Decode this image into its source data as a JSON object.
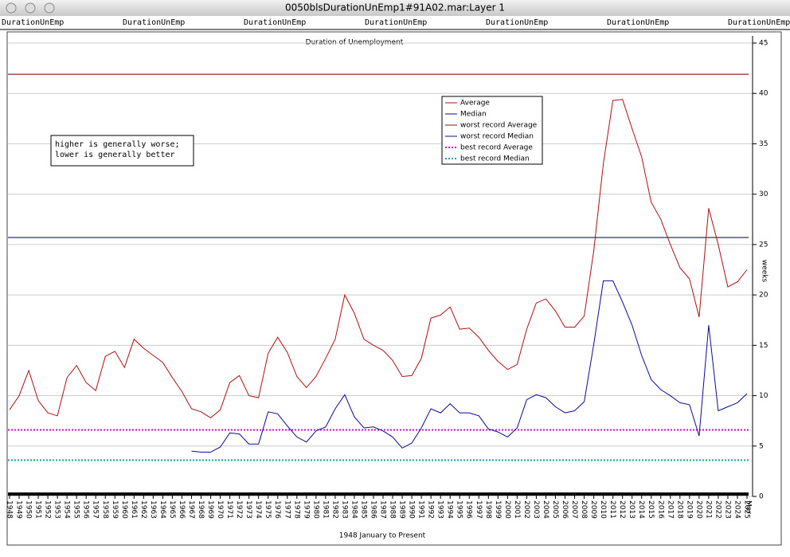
{
  "window": {
    "title": "0050blsDurationUnEmp1#91A02.mar:Layer 1",
    "header_labels": [
      "DurationUnEmp",
      "DurationUnEmp",
      "DurationUnEmp",
      "DurationUnEmp",
      "DurationUnEmp",
      "DurationUnEmp",
      "DurationUnEmp"
    ]
  },
  "chart_data": {
    "type": "line",
    "title": "Duration of Unemployment",
    "x_label": "1948 January to Present",
    "y_label": "weeks",
    "x_end_label": "Mar",
    "note": [
      "higher is generally worse;",
      "lower is generally better"
    ],
    "x": [
      1948,
      1949,
      1950,
      1951,
      1952,
      1953,
      1954,
      1955,
      1956,
      1957,
      1958,
      1959,
      1960,
      1961,
      1962,
      1963,
      1964,
      1965,
      1966,
      1967,
      1968,
      1969,
      1970,
      1971,
      1972,
      1973,
      1974,
      1975,
      1976,
      1977,
      1978,
      1979,
      1980,
      1981,
      1982,
      1983,
      1984,
      1985,
      1986,
      1987,
      1988,
      1989,
      1990,
      1991,
      1992,
      1993,
      1994,
      1995,
      1996,
      1997,
      1998,
      1999,
      2000,
      2001,
      2002,
      2003,
      2004,
      2005,
      2006,
      2007,
      2008,
      2009,
      2010,
      2011,
      2012,
      2013,
      2014,
      2015,
      2016,
      2017,
      2018,
      2019,
      2020,
      2021,
      2022,
      2023,
      2024,
      2025
    ],
    "series": [
      {
        "name": "Average",
        "color": "#b01010",
        "values": [
          8.6,
          10,
          12.5,
          9.5,
          8.3,
          8,
          11.8,
          13,
          11.3,
          10.5,
          13.9,
          14.4,
          12.8,
          15.6,
          14.7,
          14,
          13.3,
          11.8,
          10.4,
          8.7,
          8.4,
          7.8,
          8.6,
          11.3,
          12,
          10,
          9.8,
          14.2,
          15.8,
          14.3,
          11.9,
          10.8,
          11.9,
          13.7,
          15.6,
          20,
          18.2,
          15.6,
          15,
          14.5,
          13.5,
          11.9,
          12,
          13.7,
          17.7,
          18,
          18.8,
          16.6,
          16.7,
          15.8,
          14.5,
          13.4,
          12.6,
          13.1,
          16.6,
          19.2,
          19.6,
          18.4,
          16.8,
          16.8,
          17.9,
          24.4,
          33,
          39.3,
          39.4,
          36.5,
          33.7,
          29.2,
          27.5,
          25,
          22.7,
          21.6,
          17.8,
          28.6,
          25,
          20.8,
          21.3,
          22.5
        ]
      },
      {
        "name": "Median",
        "color": "#0a0a9a",
        "values": [
          null,
          null,
          null,
          null,
          null,
          null,
          null,
          null,
          null,
          null,
          null,
          null,
          null,
          null,
          null,
          null,
          null,
          null,
          null,
          4.5,
          4.4,
          4.4,
          4.9,
          6.3,
          6.2,
          5.2,
          5.2,
          8.4,
          8.2,
          7,
          5.9,
          5.4,
          6.5,
          6.9,
          8.7,
          10.1,
          7.9,
          6.8,
          6.9,
          6.5,
          5.9,
          4.8,
          5.3,
          6.8,
          8.7,
          8.3,
          9.2,
          8.3,
          8.3,
          8,
          6.7,
          6.4,
          5.9,
          6.8,
          9.6,
          10.1,
          9.8,
          8.9,
          8.3,
          8.5,
          9.4,
          15.1,
          21.4,
          21.4,
          19.3,
          17,
          14,
          11.6,
          10.6,
          10,
          9.3,
          9.1,
          6,
          17,
          8.5,
          8.9,
          9.3,
          10.2
        ]
      }
    ],
    "reference_lines": [
      {
        "name": "worst record Average",
        "value": 41.9,
        "color": "#8b1010",
        "style": "solid"
      },
      {
        "name": "worst record Median",
        "value": 25.7,
        "color": "#10108b",
        "style": "solid"
      },
      {
        "name": "best record Average",
        "value": 6.6,
        "color": "#d010d0",
        "style": "dotted"
      },
      {
        "name": "best record Median",
        "value": 3.6,
        "color": "#10a0b0",
        "style": "dotted"
      }
    ],
    "xlim": [
      1948,
      2025
    ],
    "xticks": [
      1948,
      1949,
      1950,
      1951,
      1952,
      1953,
      1954,
      1955,
      1956,
      1957,
      1958,
      1959,
      1960,
      1961,
      1962,
      1963,
      1964,
      1965,
      1966,
      1967,
      1968,
      1969,
      1970,
      1971,
      1972,
      1973,
      1974,
      1975,
      1976,
      1977,
      1978,
      1979,
      1980,
      1981,
      1982,
      1983,
      1984,
      1985,
      1986,
      1987,
      1988,
      1989,
      1990,
      1991,
      1992,
      1993,
      1994,
      1995,
      1996,
      1997,
      1998,
      1999,
      2000,
      2001,
      2002,
      2003,
      2004,
      2005,
      2006,
      2007,
      2008,
      2009,
      2010,
      2011,
      2012,
      2013,
      2014,
      2015,
      2016,
      2017,
      2018,
      2019,
      2020,
      2021,
      2022,
      2023,
      2024,
      2025
    ],
    "ylim": [
      0,
      45
    ],
    "yticks": [
      0,
      5,
      10,
      15,
      20,
      25,
      30,
      35,
      40,
      45
    ],
    "grid": true
  }
}
